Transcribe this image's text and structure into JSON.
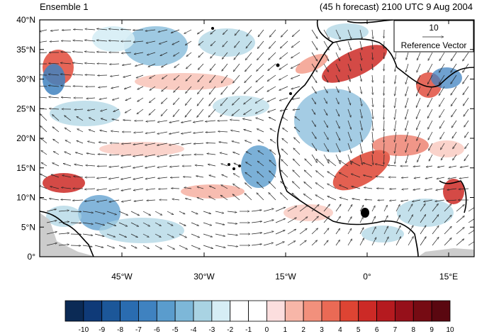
{
  "header": {
    "left_title": "Ensemble 1",
    "right_title": "(45 h forecast) 2100 UTC 9 Aug 2004"
  },
  "map": {
    "lat_ticks": [
      "0°",
      "5°N",
      "10°N",
      "15°N",
      "20°N",
      "25°N",
      "30°N",
      "35°N",
      "40°N"
    ],
    "lon_ticks": [
      "45°W",
      "30°W",
      "15°W",
      "0°",
      "15°E"
    ],
    "reference_vector": {
      "value": "10",
      "label": "Reference Vector"
    },
    "colors": {
      "ocean": "#ffffff",
      "land_mask": "#cccccc",
      "coast": "#000000"
    }
  },
  "colorbar": {
    "labels": [
      "-10",
      "-9",
      "-8",
      "-7",
      "-6",
      "-5",
      "-4",
      "-3",
      "-2",
      "-1",
      "0",
      "1",
      "2",
      "3",
      "4",
      "5",
      "6",
      "7",
      "8",
      "9",
      "10"
    ],
    "colors": [
      "#0b2a55",
      "#0f3a78",
      "#1c5799",
      "#2a6cb0",
      "#3f82c0",
      "#5a9ccd",
      "#7db7d8",
      "#a9d3e3",
      "#d6edf5",
      "#ffffff",
      "#ffffff",
      "#fcdede",
      "#f7b6a8",
      "#f2907c",
      "#ea6a55",
      "#de4433",
      "#cc2a26",
      "#b51a1f",
      "#96101a",
      "#760b13",
      "#5a0710"
    ]
  }
}
